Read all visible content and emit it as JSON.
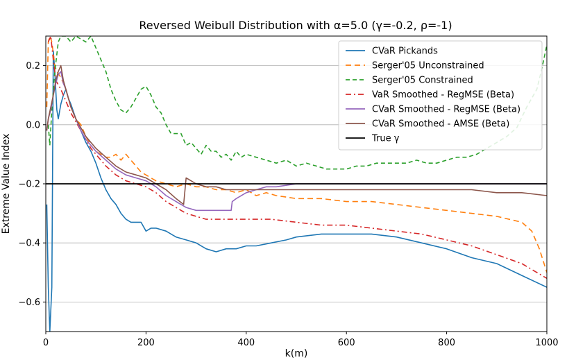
{
  "chart_data": {
    "type": "line",
    "title": "Reversed Weibull Distribution with α=5.0 (γ=-0.2, ρ=-1)",
    "xlabel": "k(m)",
    "ylabel": "Extreme Value Index",
    "xlim": [
      0,
      1000
    ],
    "ylim": [
      -0.7,
      0.3
    ],
    "xticks": [
      0,
      200,
      400,
      600,
      800,
      1000
    ],
    "xtick_labels": [
      "0",
      "200",
      "400",
      "600",
      "800",
      "1000"
    ],
    "yticks": [
      -0.6,
      -0.4,
      -0.2,
      0.0,
      0.2
    ],
    "ytick_labels": [
      "−0.6",
      "−0.4",
      "−0.2",
      "0.0",
      "0.2"
    ],
    "grid": "horizontal",
    "legend_position": "top-right",
    "series": [
      {
        "name": "CVaR Pickands",
        "color": "#1f77b4",
        "dash": "solid",
        "points": [
          [
            2,
            -0.27
          ],
          [
            5,
            -0.55
          ],
          [
            8,
            -0.7
          ],
          [
            12,
            -0.55
          ],
          [
            15,
            0.25
          ],
          [
            18,
            0.18
          ],
          [
            22,
            0.05
          ],
          [
            25,
            0.02
          ],
          [
            30,
            0.07
          ],
          [
            35,
            0.1
          ],
          [
            40,
            0.12
          ],
          [
            45,
            0.09
          ],
          [
            50,
            0.07
          ],
          [
            60,
            0.02
          ],
          [
            70,
            -0.02
          ],
          [
            80,
            -0.06
          ],
          [
            90,
            -0.09
          ],
          [
            100,
            -0.13
          ],
          [
            110,
            -0.18
          ],
          [
            120,
            -0.22
          ],
          [
            130,
            -0.25
          ],
          [
            140,
            -0.27
          ],
          [
            150,
            -0.3
          ],
          [
            160,
            -0.32
          ],
          [
            170,
            -0.33
          ],
          [
            180,
            -0.33
          ],
          [
            190,
            -0.33
          ],
          [
            200,
            -0.36
          ],
          [
            210,
            -0.35
          ],
          [
            220,
            -0.35
          ],
          [
            240,
            -0.36
          ],
          [
            260,
            -0.38
          ],
          [
            280,
            -0.39
          ],
          [
            300,
            -0.4
          ],
          [
            320,
            -0.42
          ],
          [
            340,
            -0.43
          ],
          [
            360,
            -0.42
          ],
          [
            380,
            -0.42
          ],
          [
            400,
            -0.41
          ],
          [
            420,
            -0.41
          ],
          [
            450,
            -0.4
          ],
          [
            480,
            -0.39
          ],
          [
            500,
            -0.38
          ],
          [
            550,
            -0.37
          ],
          [
            600,
            -0.37
          ],
          [
            650,
            -0.37
          ],
          [
            700,
            -0.38
          ],
          [
            750,
            -0.4
          ],
          [
            800,
            -0.42
          ],
          [
            850,
            -0.45
          ],
          [
            900,
            -0.47
          ],
          [
            950,
            -0.51
          ],
          [
            1000,
            -0.55
          ]
        ]
      },
      {
        "name": "Serger'05 Unconstrained",
        "color": "#ff7f0e",
        "dash": "8,5",
        "points": [
          [
            2,
            0.06
          ],
          [
            5,
            0.28
          ],
          [
            8,
            0.3
          ],
          [
            12,
            0.28
          ],
          [
            18,
            0.2
          ],
          [
            22,
            0.18
          ],
          [
            30,
            0.16
          ],
          [
            40,
            0.12
          ],
          [
            50,
            0.06
          ],
          [
            60,
            0.02
          ],
          [
            70,
            0.0
          ],
          [
            80,
            -0.04
          ],
          [
            90,
            -0.07
          ],
          [
            100,
            -0.09
          ],
          [
            110,
            -0.1
          ],
          [
            120,
            -0.11
          ],
          [
            130,
            -0.11
          ],
          [
            140,
            -0.1
          ],
          [
            150,
            -0.12
          ],
          [
            160,
            -0.1
          ],
          [
            170,
            -0.12
          ],
          [
            180,
            -0.14
          ],
          [
            190,
            -0.16
          ],
          [
            200,
            -0.17
          ],
          [
            210,
            -0.18
          ],
          [
            220,
            -0.19
          ],
          [
            240,
            -0.2
          ],
          [
            260,
            -0.21
          ],
          [
            280,
            -0.2
          ],
          [
            300,
            -0.21
          ],
          [
            320,
            -0.21
          ],
          [
            340,
            -0.22
          ],
          [
            360,
            -0.22
          ],
          [
            380,
            -0.23
          ],
          [
            400,
            -0.22
          ],
          [
            420,
            -0.24
          ],
          [
            440,
            -0.23
          ],
          [
            460,
            -0.24
          ],
          [
            500,
            -0.25
          ],
          [
            550,
            -0.25
          ],
          [
            600,
            -0.26
          ],
          [
            650,
            -0.26
          ],
          [
            700,
            -0.27
          ],
          [
            750,
            -0.28
          ],
          [
            800,
            -0.29
          ],
          [
            850,
            -0.3
          ],
          [
            900,
            -0.31
          ],
          [
            950,
            -0.33
          ],
          [
            970,
            -0.36
          ],
          [
            985,
            -0.42
          ],
          [
            1000,
            -0.5
          ]
        ]
      },
      {
        "name": "Serger'05 Constrained",
        "color": "#2ca02c",
        "dash": "6,4",
        "points": [
          [
            5,
            0.0
          ],
          [
            8,
            -0.07
          ],
          [
            12,
            0.05
          ],
          [
            18,
            0.18
          ],
          [
            25,
            0.28
          ],
          [
            30,
            0.3
          ],
          [
            40,
            0.3
          ],
          [
            50,
            0.28
          ],
          [
            60,
            0.3
          ],
          [
            70,
            0.29
          ],
          [
            80,
            0.28
          ],
          [
            90,
            0.3
          ],
          [
            100,
            0.26
          ],
          [
            110,
            0.22
          ],
          [
            120,
            0.18
          ],
          [
            130,
            0.12
          ],
          [
            140,
            0.08
          ],
          [
            150,
            0.05
          ],
          [
            160,
            0.04
          ],
          [
            170,
            0.06
          ],
          [
            180,
            0.09
          ],
          [
            190,
            0.12
          ],
          [
            200,
            0.13
          ],
          [
            210,
            0.1
          ],
          [
            220,
            0.06
          ],
          [
            230,
            0.04
          ],
          [
            240,
            0.0
          ],
          [
            250,
            -0.03
          ],
          [
            260,
            -0.03
          ],
          [
            270,
            -0.03
          ],
          [
            280,
            -0.07
          ],
          [
            290,
            -0.06
          ],
          [
            300,
            -0.08
          ],
          [
            310,
            -0.1
          ],
          [
            320,
            -0.07
          ],
          [
            330,
            -0.09
          ],
          [
            340,
            -0.09
          ],
          [
            350,
            -0.11
          ],
          [
            360,
            -0.1
          ],
          [
            370,
            -0.12
          ],
          [
            380,
            -0.09
          ],
          [
            390,
            -0.11
          ],
          [
            400,
            -0.1
          ],
          [
            420,
            -0.11
          ],
          [
            440,
            -0.12
          ],
          [
            460,
            -0.13
          ],
          [
            480,
            -0.12
          ],
          [
            500,
            -0.14
          ],
          [
            520,
            -0.13
          ],
          [
            540,
            -0.14
          ],
          [
            560,
            -0.15
          ],
          [
            580,
            -0.15
          ],
          [
            600,
            -0.15
          ],
          [
            620,
            -0.14
          ],
          [
            640,
            -0.14
          ],
          [
            660,
            -0.13
          ],
          [
            680,
            -0.13
          ],
          [
            700,
            -0.13
          ],
          [
            720,
            -0.13
          ],
          [
            740,
            -0.12
          ],
          [
            760,
            -0.13
          ],
          [
            780,
            -0.13
          ],
          [
            800,
            -0.12
          ],
          [
            820,
            -0.11
          ],
          [
            840,
            -0.11
          ],
          [
            860,
            -0.1
          ],
          [
            880,
            -0.08
          ],
          [
            900,
            -0.06
          ],
          [
            920,
            -0.04
          ],
          [
            940,
            -0.01
          ],
          [
            960,
            0.06
          ],
          [
            980,
            0.12
          ],
          [
            990,
            0.19
          ],
          [
            1000,
            0.27
          ]
        ]
      },
      {
        "name": "VaR Smoothed - RegMSE (Beta)",
        "color": "#d62728",
        "dash": "8,4,2,4",
        "points": [
          [
            5,
            0.28
          ],
          [
            10,
            0.3
          ],
          [
            15,
            0.22
          ],
          [
            20,
            0.15
          ],
          [
            30,
            0.12
          ],
          [
            40,
            0.08
          ],
          [
            50,
            0.04
          ],
          [
            60,
            0.01
          ],
          [
            70,
            -0.02
          ],
          [
            80,
            -0.05
          ],
          [
            90,
            -0.08
          ],
          [
            100,
            -0.1
          ],
          [
            120,
            -0.14
          ],
          [
            140,
            -0.17
          ],
          [
            160,
            -0.19
          ],
          [
            180,
            -0.2
          ],
          [
            200,
            -0.21
          ],
          [
            220,
            -0.23
          ],
          [
            240,
            -0.26
          ],
          [
            260,
            -0.28
          ],
          [
            280,
            -0.3
          ],
          [
            300,
            -0.31
          ],
          [
            320,
            -0.32
          ],
          [
            340,
            -0.32
          ],
          [
            360,
            -0.32
          ],
          [
            380,
            -0.32
          ],
          [
            400,
            -0.32
          ],
          [
            450,
            -0.32
          ],
          [
            500,
            -0.33
          ],
          [
            550,
            -0.34
          ],
          [
            600,
            -0.34
          ],
          [
            650,
            -0.35
          ],
          [
            700,
            -0.36
          ],
          [
            750,
            -0.37
          ],
          [
            800,
            -0.39
          ],
          [
            850,
            -0.41
          ],
          [
            900,
            -0.44
          ],
          [
            950,
            -0.47
          ],
          [
            1000,
            -0.52
          ]
        ]
      },
      {
        "name": "CVaR Smoothed - RegMSE (Beta)",
        "color": "#9467bd",
        "dash": "solid",
        "points": [
          [
            2,
            -0.02
          ],
          [
            5,
            0.02
          ],
          [
            10,
            0.05
          ],
          [
            15,
            0.1
          ],
          [
            20,
            0.14
          ],
          [
            25,
            0.17
          ],
          [
            30,
            0.18
          ],
          [
            35,
            0.14
          ],
          [
            40,
            0.12
          ],
          [
            50,
            0.06
          ],
          [
            60,
            0.02
          ],
          [
            70,
            -0.02
          ],
          [
            80,
            -0.05
          ],
          [
            100,
            -0.09
          ],
          [
            120,
            -0.12
          ],
          [
            140,
            -0.15
          ],
          [
            160,
            -0.17
          ],
          [
            180,
            -0.18
          ],
          [
            200,
            -0.19
          ],
          [
            220,
            -0.21
          ],
          [
            240,
            -0.24
          ],
          [
            260,
            -0.26
          ],
          [
            280,
            -0.28
          ],
          [
            300,
            -0.29
          ],
          [
            320,
            -0.29
          ],
          [
            340,
            -0.29
          ],
          [
            370,
            -0.29
          ],
          [
            372,
            -0.26
          ],
          [
            380,
            -0.25
          ],
          [
            400,
            -0.23
          ],
          [
            420,
            -0.22
          ],
          [
            440,
            -0.21
          ],
          [
            460,
            -0.21
          ],
          [
            500,
            -0.2
          ],
          [
            550,
            -0.2
          ],
          [
            600,
            -0.2
          ],
          [
            650,
            -0.2
          ],
          [
            700,
            -0.2
          ],
          [
            750,
            -0.2
          ],
          [
            800,
            -0.2
          ],
          [
            850,
            -0.2
          ],
          [
            900,
            -0.2
          ],
          [
            950,
            -0.2
          ],
          [
            1000,
            -0.2
          ]
        ]
      },
      {
        "name": "CVaR Smoothed - AMSE (Beta)",
        "color": "#8c564b",
        "dash": "solid",
        "points": [
          [
            2,
            -0.02
          ],
          [
            5,
            0.02
          ],
          [
            10,
            0.06
          ],
          [
            15,
            0.1
          ],
          [
            20,
            0.15
          ],
          [
            25,
            0.18
          ],
          [
            30,
            0.2
          ],
          [
            35,
            0.15
          ],
          [
            40,
            0.12
          ],
          [
            50,
            0.06
          ],
          [
            60,
            0.02
          ],
          [
            70,
            -0.01
          ],
          [
            80,
            -0.04
          ],
          [
            100,
            -0.08
          ],
          [
            120,
            -0.11
          ],
          [
            140,
            -0.14
          ],
          [
            160,
            -0.16
          ],
          [
            180,
            -0.17
          ],
          [
            200,
            -0.18
          ],
          [
            220,
            -0.2
          ],
          [
            240,
            -0.22
          ],
          [
            260,
            -0.25
          ],
          [
            275,
            -0.27
          ],
          [
            280,
            -0.18
          ],
          [
            290,
            -0.19
          ],
          [
            300,
            -0.2
          ],
          [
            320,
            -0.21
          ],
          [
            340,
            -0.21
          ],
          [
            360,
            -0.22
          ],
          [
            380,
            -0.22
          ],
          [
            400,
            -0.22
          ],
          [
            450,
            -0.22
          ],
          [
            500,
            -0.22
          ],
          [
            550,
            -0.22
          ],
          [
            600,
            -0.22
          ],
          [
            650,
            -0.22
          ],
          [
            700,
            -0.22
          ],
          [
            750,
            -0.22
          ],
          [
            800,
            -0.22
          ],
          [
            850,
            -0.22
          ],
          [
            900,
            -0.23
          ],
          [
            950,
            -0.23
          ],
          [
            1000,
            -0.24
          ]
        ]
      },
      {
        "name": "True γ",
        "color": "#000000",
        "dash": "solid",
        "points": [
          [
            0,
            -0.2
          ],
          [
            1000,
            -0.2
          ]
        ]
      }
    ]
  }
}
